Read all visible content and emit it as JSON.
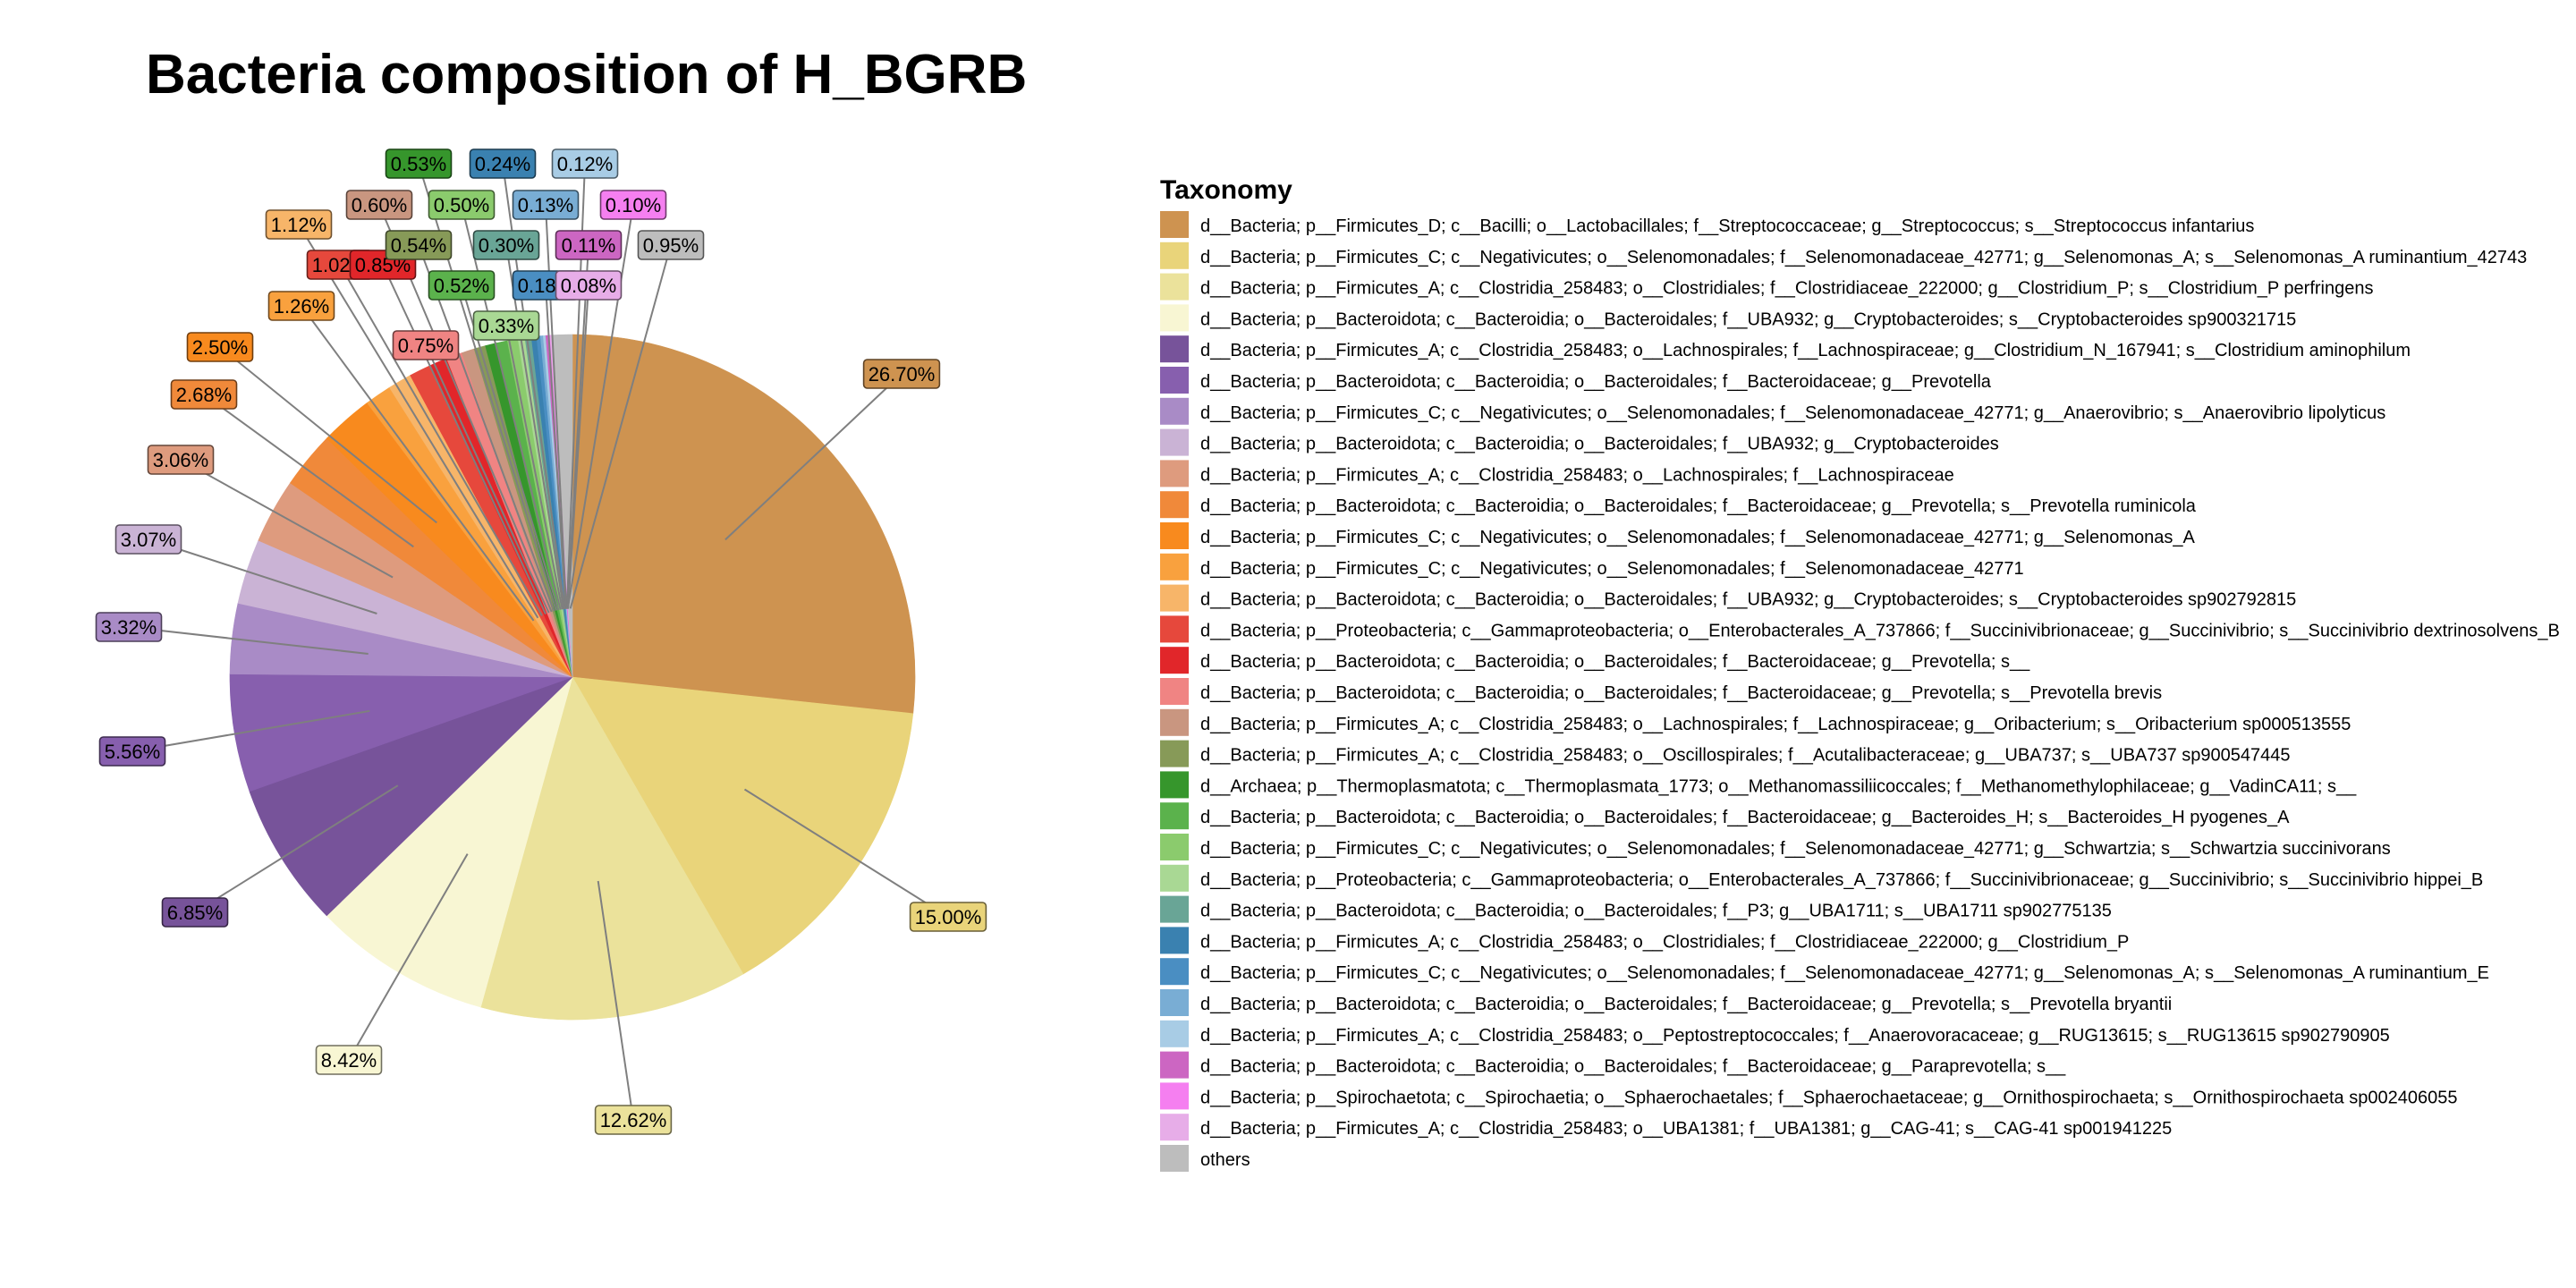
{
  "chart_data": {
    "type": "pie",
    "title": "Bacteria composition of H_BGRB",
    "legend_title": "Taxonomy",
    "legend_placement": "right",
    "slices": [
      {
        "label": "d__Bacteria; p__Firmicutes_D; c__Bacilli; o__Lactobacillales; f__Streptococcaceae; g__Streptococcus; s__Streptococcus infantarius",
        "value": 26.7,
        "text": "26.70%",
        "color": "#CE9350"
      },
      {
        "label": "d__Bacteria; p__Firmicutes_C; c__Negativicutes; o__Selenomonadales; f__Selenomonadaceae_42771; g__Selenomonas_A; s__Selenomonas_A ruminantium_42743",
        "value": 15.0,
        "text": "15.00%",
        "color": "#E9D47A"
      },
      {
        "label": "d__Bacteria; p__Firmicutes_A; c__Clostridia_258483; o__Clostridiales; f__Clostridiaceae_222000; g__Clostridium_P; s__Clostridium_P perfringens",
        "value": 12.62,
        "text": "12.62%",
        "color": "#EBE29B"
      },
      {
        "label": "d__Bacteria; p__Bacteroidota; c__Bacteroidia; o__Bacteroidales; f__UBA932; g__Cryptobacteroides; s__Cryptobacteroides sp900321715",
        "value": 8.42,
        "text": "8.42%",
        "color": "#F8F6D3"
      },
      {
        "label": "d__Bacteria; p__Firmicutes_A; c__Clostridia_258483; o__Lachnospirales; f__Lachnospiraceae; g__Clostridium_N_167941; s__Clostridium aminophilum",
        "value": 6.85,
        "text": "6.85%",
        "color": "#77539A"
      },
      {
        "label": "d__Bacteria; p__Bacteroidota; c__Bacteroidia; o__Bacteroidales; f__Bacteroidaceae; g__Prevotella",
        "value": 5.56,
        "text": "5.56%",
        "color": "#875FAE"
      },
      {
        "label": "d__Bacteria; p__Firmicutes_C; c__Negativicutes; o__Selenomonadales; f__Selenomonadaceae_42771; g__Anaerovibrio; s__Anaerovibrio lipolyticus",
        "value": 3.32,
        "text": "3.32%",
        "color": "#A98BC6"
      },
      {
        "label": "d__Bacteria; p__Bacteroidota; c__Bacteroidia; o__Bacteroidales; f__UBA932; g__Cryptobacteroides",
        "value": 3.07,
        "text": "3.07%",
        "color": "#CAB3D5"
      },
      {
        "label": "d__Bacteria; p__Firmicutes_A; c__Clostridia_258483; o__Lachnospirales; f__Lachnospiraceae",
        "value": 3.06,
        "text": "3.06%",
        "color": "#DE9B7E"
      },
      {
        "label": "d__Bacteria; p__Bacteroidota; c__Bacteroidia; o__Bacteroidales; f__Bacteroidaceae; g__Prevotella; s__Prevotella ruminicola",
        "value": 2.68,
        "text": "2.68%",
        "color": "#F0893A"
      },
      {
        "label": "d__Bacteria; p__Firmicutes_C; c__Negativicutes; o__Selenomonadales; f__Selenomonadaceae_42771; g__Selenomonas_A",
        "value": 2.5,
        "text": "2.50%",
        "color": "#F88A1E"
      },
      {
        "label": "d__Bacteria; p__Firmicutes_C; c__Negativicutes; o__Selenomonadales; f__Selenomonadaceae_42771",
        "value": 1.26,
        "text": "1.26%",
        "color": "#F9A13E"
      },
      {
        "label": "d__Bacteria; p__Bacteroidota; c__Bacteroidia; o__Bacteroidales; f__UBA932; g__Cryptobacteroides; s__Cryptobacteroides sp902792815",
        "value": 1.12,
        "text": "1.12%",
        "color": "#F7B569"
      },
      {
        "label": "d__Bacteria; p__Proteobacteria; c__Gammaproteobacteria; o__Enterobacterales_A_737866; f__Succinivibrionaceae; g__Succinivibrio; s__Succinivibrio dextrinosolvens_B",
        "value": 1.02,
        "text": "1.02%",
        "color": "#E6483C"
      },
      {
        "label": "d__Bacteria; p__Bacteroidota; c__Bacteroidia; o__Bacteroidales; f__Bacteroidaceae; g__Prevotella; s__",
        "value": 0.85,
        "text": "0.85%",
        "color": "#E1262A"
      },
      {
        "label": "d__Bacteria; p__Bacteroidota; c__Bacteroidia; o__Bacteroidales; f__Bacteroidaceae; g__Prevotella; s__Prevotella brevis",
        "value": 0.75,
        "text": "0.75%",
        "color": "#F08483"
      },
      {
        "label": "d__Bacteria; p__Firmicutes_A; c__Clostridia_258483; o__Lachnospirales; f__Lachnospiraceae; g__Oribacterium; s__Oribacterium sp000513555",
        "value": 0.6,
        "text": "0.60%",
        "color": "#C99680"
      },
      {
        "label": "d__Bacteria; p__Firmicutes_A; c__Clostridia_258483; o__Oscillospirales; f__Acutalibacteraceae; g__UBA737; s__UBA737 sp900547445",
        "value": 0.54,
        "text": "0.54%",
        "color": "#879A58"
      },
      {
        "label": "d__Archaea; p__Thermoplasmatota; c__Thermoplasmata_1773; o__Methanomassiliicoccales; f__Methanomethylophilaceae; g__VadinCA11; s__",
        "value": 0.53,
        "text": "0.53%",
        "color": "#36962C"
      },
      {
        "label": "d__Bacteria; p__Bacteroidota; c__Bacteroidia; o__Bacteroidales; f__Bacteroidaceae; g__Bacteroides_H; s__Bacteroides_H pyogenes_A",
        "value": 0.52,
        "text": "0.52%",
        "color": "#5BB24C"
      },
      {
        "label": "d__Bacteria; p__Firmicutes_C; c__Negativicutes; o__Selenomonadales; f__Selenomonadaceae_42771; g__Schwartzia; s__Schwartzia succinivorans",
        "value": 0.5,
        "text": "0.50%",
        "color": "#8BCB6D"
      },
      {
        "label": "d__Bacteria; p__Proteobacteria; c__Gammaproteobacteria; o__Enterobacterales_A_737866; f__Succinivibrionaceae; g__Succinivibrio; s__Succinivibrio hippei_B",
        "value": 0.33,
        "text": "0.33%",
        "color": "#A9D894"
      },
      {
        "label": "d__Bacteria; p__Bacteroidota; c__Bacteroidia; o__Bacteroidales; f__P3; g__UBA1711; s__UBA1711 sp902775135",
        "value": 0.3,
        "text": "0.30%",
        "color": "#69A596"
      },
      {
        "label": "d__Bacteria; p__Firmicutes_A; c__Clostridia_258483; o__Clostridiales; f__Clostridiaceae_222000; g__Clostridium_P",
        "value": 0.24,
        "text": "0.24%",
        "color": "#3A81B0"
      },
      {
        "label": "d__Bacteria; p__Firmicutes_C; c__Negativicutes; o__Selenomonadales; f__Selenomonadaceae_42771; g__Selenomonas_A; s__Selenomonas_A ruminantium_E",
        "value": 0.18,
        "text": "0.18%",
        "color": "#4A8EC2"
      },
      {
        "label": "d__Bacteria; p__Bacteroidota; c__Bacteroidia; o__Bacteroidales; f__Bacteroidaceae; g__Prevotella; s__Prevotella bryantii",
        "value": 0.13,
        "text": "0.13%",
        "color": "#79ADD4"
      },
      {
        "label": "d__Bacteria; p__Firmicutes_A; c__Clostridia_258483; o__Peptostreptococcales; f__Anaerovoracaceae; g__RUG13615; s__RUG13615 sp902790905",
        "value": 0.12,
        "text": "0.12%",
        "color": "#A8CCE5"
      },
      {
        "label": "d__Bacteria; p__Bacteroidota; c__Bacteroidia; o__Bacteroidales; f__Bacteroidaceae; g__Paraprevotella; s__",
        "value": 0.11,
        "text": "0.11%",
        "color": "#CC66C2"
      },
      {
        "label": "d__Bacteria; p__Spirochaetota; c__Spirochaetia; o__Sphaerochaetales; f__Sphaerochaetaceae; g__Ornithospirochaeta; s__Ornithospirochaeta sp002406055",
        "value": 0.1,
        "text": "0.10%",
        "color": "#F57FF0"
      },
      {
        "label": "d__Bacteria; p__Firmicutes_A; c__Clostridia_258483; o__UBA1381; f__UBA1381; g__CAG-41; s__CAG-41 sp001941225",
        "value": 0.08,
        "text": "0.08%",
        "color": "#E7ADE8"
      },
      {
        "label": "others",
        "value": 0.95,
        "text": "0.95%",
        "color": "#BDBDBD"
      }
    ]
  }
}
